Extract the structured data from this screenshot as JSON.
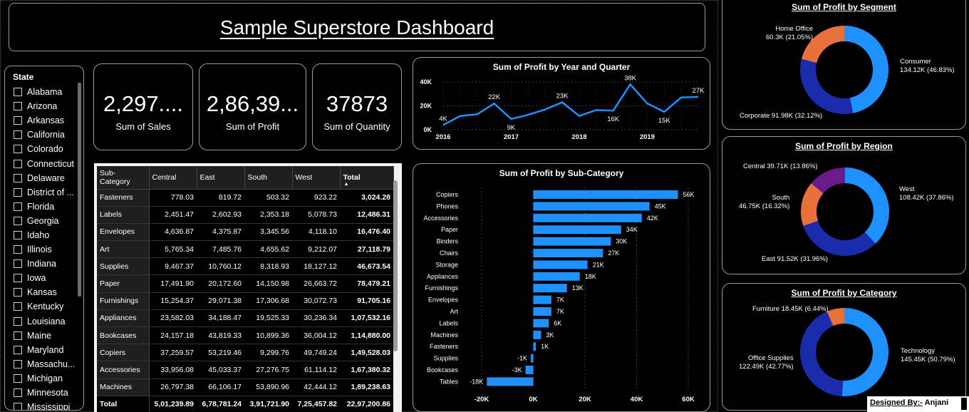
{
  "title": "Sample Superstore Dashboard",
  "slicer": {
    "header": "State",
    "items": [
      "Alabama",
      "Arizona",
      "Arkansas",
      "California",
      "Colorado",
      "Connecticut",
      "Delaware",
      "District of ...",
      "Florida",
      "Georgia",
      "Idaho",
      "Illinois",
      "Indiana",
      "Iowa",
      "Kansas",
      "Kentucky",
      "Louisiana",
      "Maine",
      "Maryland",
      "Massachu...",
      "Michigan",
      "Minnesota",
      "Mississippi"
    ]
  },
  "cards": [
    {
      "value": "2,297....",
      "label": "Sum of Sales"
    },
    {
      "value": "2,86,39...",
      "label": "Sum of Profit"
    },
    {
      "value": "37873",
      "label": "Sum of Quantity"
    }
  ],
  "table": {
    "columns": [
      "Sub-Category",
      "Central",
      "East",
      "South",
      "West",
      "Total"
    ],
    "rows": [
      [
        "Fasteners",
        "778.03",
        "819.72",
        "503.32",
        "923.22",
        "3,024.28"
      ],
      [
        "Labels",
        "2,451.47",
        "2,602.93",
        "2,353.18",
        "5,078.73",
        "12,486.31"
      ],
      [
        "Envelopes",
        "4,636.87",
        "4,375.87",
        "3,345.56",
        "4,118.10",
        "16,476.40"
      ],
      [
        "Art",
        "5,765.34",
        "7,485.76",
        "4,655.62",
        "9,212.07",
        "27,118.79"
      ],
      [
        "Supplies",
        "9,467.37",
        "10,760.12",
        "8,318.93",
        "18,127.12",
        "46,673.54"
      ],
      [
        "Paper",
        "17,491.90",
        "20,172.60",
        "14,150.98",
        "26,663.72",
        "78,479.21"
      ],
      [
        "Furnishings",
        "15,254.37",
        "29,071.38",
        "17,306.68",
        "30,072.73",
        "91,705.16"
      ],
      [
        "Appliances",
        "23,582.03",
        "34,188.47",
        "19,525.33",
        "30,236.34",
        "1,07,532.16"
      ],
      [
        "Bookcases",
        "24,157.18",
        "43,819.33",
        "10,899.36",
        "36,004.12",
        "1,14,880.00"
      ],
      [
        "Copiers",
        "37,259.57",
        "53,219.46",
        "9,299.76",
        "49,749.24",
        "1,49,528.03"
      ],
      [
        "Accessories",
        "33,956.08",
        "45,033.37",
        "27,276.75",
        "61,114.12",
        "1,67,380.32"
      ],
      [
        "Machines",
        "26,797.38",
        "66,106.17",
        "53,890.96",
        "42,444.12",
        "1,89,238.63"
      ]
    ],
    "total": [
      "Total",
      "5,01,239.89",
      "6,78,781.24",
      "3,91,721.90",
      "7,25,457.82",
      "22,97,200.86"
    ]
  },
  "line_chart": {
    "title": "Sum of Profit by Year and Quarter",
    "y_ticks": [
      "40K",
      "20K",
      "0K"
    ],
    "x_ticks": [
      "2016",
      "2017",
      "2018",
      "2019"
    ],
    "point_labels": [
      {
        "label": "4K",
        "index": 0
      },
      {
        "label": "22K",
        "index": 3
      },
      {
        "label": "9K",
        "index": 4
      },
      {
        "label": "23K",
        "index": 7
      },
      {
        "label": "16K",
        "index": 10
      },
      {
        "label": "38K",
        "index": 11
      },
      {
        "label": "15K",
        "index": 13
      },
      {
        "label": "27K",
        "index": 15
      }
    ]
  },
  "bar_chart": {
    "title": "Sum of Profit by Sub-Category",
    "x_ticks": [
      "-20K",
      "0K",
      "20K",
      "40K",
      "60K"
    ]
  },
  "segment": {
    "title": "Sum of Profit by Segment",
    "labels": [
      {
        "name": "Home Office",
        "detail": "60.3K (21.05%)"
      },
      {
        "name": "Consumer",
        "detail": "134.12K (46.83%)"
      },
      {
        "name": "Corporate",
        "detail": "91.98K (32.12%)"
      }
    ]
  },
  "region": {
    "title": "Sum of Profit by Region",
    "labels": [
      {
        "name": "Central",
        "detail": "39.71K (13.86%)"
      },
      {
        "name": "South",
        "detail": "46.75K (16.32%)"
      },
      {
        "name": "West",
        "detail": "108.42K (37.86%)"
      },
      {
        "name": "East",
        "detail": "91.52K (31.96%)"
      }
    ]
  },
  "category": {
    "title": "Sum of Profit by Category",
    "labels": [
      {
        "name": "Furniture",
        "detail": "18.45K (6.44%)"
      },
      {
        "name": "Office Supplies",
        "detail": "122.49K (42.77%)"
      },
      {
        "name": "Technology",
        "detail": "145.45K (50.79%)"
      }
    ]
  },
  "footer": {
    "prefix": "Designed By:-",
    "name": "Anjani"
  },
  "colors": {
    "accent": "#1e90ff",
    "navy": "#1a2bab",
    "orange": "#e8703a",
    "purple": "#6b1a8c"
  },
  "chart_data": [
    {
      "type": "line",
      "title": "Sum of Profit by Year and Quarter",
      "x": [
        "2016 Q1",
        "2016 Q2",
        "2016 Q3",
        "2016 Q4",
        "2017 Q1",
        "2017 Q2",
        "2017 Q3",
        "2017 Q4",
        "2018 Q1",
        "2018 Q2",
        "2018 Q3",
        "2018 Q4",
        "2019 Q1",
        "2019 Q2",
        "2019 Q3",
        "2019 Q4"
      ],
      "series": [
        {
          "values": [
            4000,
            11500,
            13000,
            22000,
            9000,
            12500,
            17000,
            23000,
            11500,
            16500,
            16000,
            38000,
            22000,
            15000,
            27000,
            27500
          ]
        }
      ],
      "ylim": [
        0,
        40000
      ],
      "grid": true
    },
    {
      "type": "bar",
      "orientation": "horizontal",
      "title": "Sum of Profit by Sub-Category",
      "categories": [
        "Copiers",
        "Phones",
        "Accessories",
        "Paper",
        "Binders",
        "Chairs",
        "Storage",
        "Appliances",
        "Furnishings",
        "Envelopes",
        "Art",
        "Labels",
        "Machines",
        "Fasteners",
        "Supplies",
        "Bookcases",
        "Tables"
      ],
      "values": [
        56000,
        45000,
        42000,
        34000,
        30000,
        27000,
        21000,
        18000,
        13000,
        7000,
        7000,
        6000,
        3000,
        1000,
        -1000,
        -3000,
        -18000
      ],
      "value_labels": [
        "56K",
        "45K",
        "42K",
        "34K",
        "30K",
        "27K",
        "21K",
        "18K",
        "13K",
        "7K",
        "7K",
        "6K",
        "3K",
        "1K",
        "-1K",
        "-3K",
        "-18K"
      ],
      "xlim": [
        -20000,
        60000
      ]
    },
    {
      "type": "pie",
      "title": "Sum of Profit by Segment",
      "categories": [
        "Consumer",
        "Corporate",
        "Home Office"
      ],
      "values": [
        134.12,
        91.98,
        60.3
      ],
      "colors": [
        "#1e90ff",
        "#1a2bab",
        "#e8703a"
      ]
    },
    {
      "type": "pie",
      "title": "Sum of Profit by Region",
      "categories": [
        "West",
        "East",
        "South",
        "Central"
      ],
      "values": [
        108.42,
        91.52,
        46.75,
        39.71
      ],
      "colors": [
        "#1e90ff",
        "#1a2bab",
        "#e8703a",
        "#6b1a8c"
      ]
    },
    {
      "type": "pie",
      "title": "Sum of Profit by Category",
      "categories": [
        "Technology",
        "Office Supplies",
        "Furniture"
      ],
      "values": [
        145.45,
        122.49,
        18.45
      ],
      "colors": [
        "#1e90ff",
        "#1a2bab",
        "#e8703a"
      ]
    }
  ]
}
